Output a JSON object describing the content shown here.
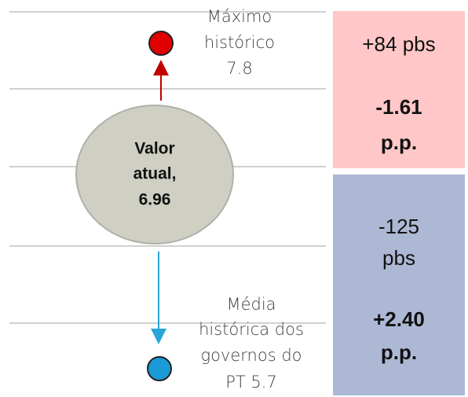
{
  "max_label": {
    "lines": [
      "Máximo",
      "histórico",
      "7.8"
    ]
  },
  "current": {
    "lines": [
      "Valor",
      "atual,",
      "6.96"
    ]
  },
  "mean_label": {
    "lines": [
      "Média",
      "histórica dos",
      "governos do",
      "PT 5.7"
    ]
  },
  "upper_box": {
    "lines": [
      "+84 pbs",
      "-1.61",
      "p.p."
    ]
  },
  "lower_box": {
    "lines": [
      "-125",
      "pbs",
      "+2.40",
      "p.p."
    ]
  }
}
